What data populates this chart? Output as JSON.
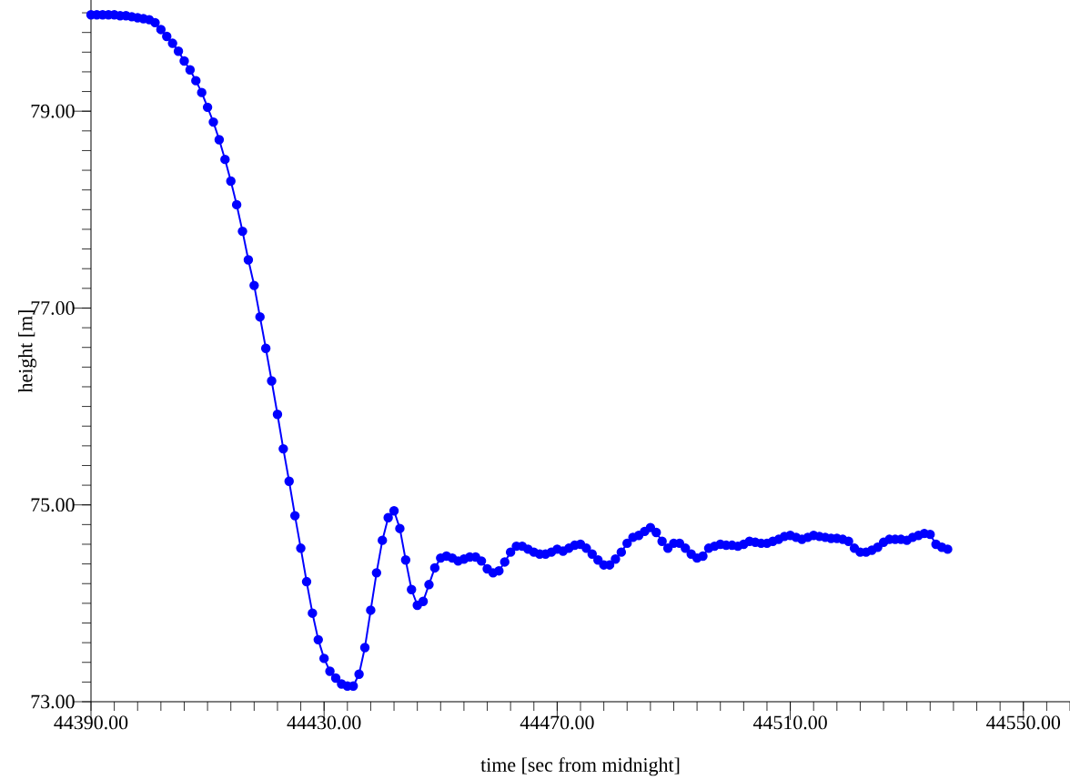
{
  "chart_data": {
    "type": "line",
    "xlabel": "time [sec from midnight]",
    "ylabel": "height [m]",
    "x": [
      44390,
      44391,
      44392,
      44393,
      44394,
      44395,
      44396,
      44397,
      44398,
      44399,
      44400,
      44401,
      44402,
      44403,
      44404,
      44405,
      44406,
      44407,
      44408,
      44409,
      44410,
      44411,
      44412,
      44413,
      44414,
      44415,
      44416,
      44417,
      44418,
      44419,
      44420,
      44421,
      44422,
      44423,
      44424,
      44425,
      44426,
      44427,
      44428,
      44429,
      44430,
      44431,
      44432,
      44433,
      44434,
      44435,
      44436,
      44437,
      44438,
      44439,
      44440,
      44441,
      44442,
      44443,
      44444,
      44445,
      44446,
      44447,
      44448,
      44449,
      44450,
      44451,
      44452,
      44453,
      44454,
      44455,
      44456,
      44457,
      44458,
      44459,
      44460,
      44461,
      44462,
      44463,
      44464,
      44465,
      44466,
      44467,
      44468,
      44469,
      44470,
      44471,
      44472,
      44473,
      44474,
      44475,
      44476,
      44477,
      44478,
      44479,
      44480,
      44481,
      44482,
      44483,
      44484,
      44485,
      44486,
      44487,
      44488,
      44489,
      44490,
      44491,
      44492,
      44493,
      44494,
      44495,
      44496,
      44497,
      44498,
      44499,
      44500,
      44501,
      44502,
      44503,
      44504,
      44505,
      44506,
      44507,
      44508,
      44509,
      44510,
      44511,
      44512,
      44513,
      44514,
      44515,
      44516,
      44517,
      44518,
      44519,
      44520,
      44521,
      44522,
      44523,
      44524,
      44525,
      44526,
      44527,
      44528,
      44529,
      44530,
      44531,
      44532,
      44533,
      44534,
      44535,
      44536,
      44537
    ],
    "values": [
      79.98,
      79.98,
      79.98,
      79.98,
      79.98,
      79.97,
      79.97,
      79.96,
      79.95,
      79.94,
      79.93,
      79.9,
      79.83,
      79.76,
      79.69,
      79.61,
      79.51,
      79.42,
      79.31,
      79.19,
      79.04,
      78.89,
      78.71,
      78.51,
      78.29,
      78.05,
      77.78,
      77.49,
      77.23,
      76.91,
      76.59,
      76.26,
      75.92,
      75.57,
      75.24,
      74.89,
      74.56,
      74.22,
      73.9,
      73.63,
      73.44,
      73.31,
      73.24,
      73.18,
      73.16,
      73.16,
      73.28,
      73.55,
      73.93,
      74.31,
      74.64,
      74.87,
      74.94,
      74.76,
      74.44,
      74.14,
      73.98,
      74.02,
      74.19,
      74.36,
      74.46,
      74.48,
      74.46,
      74.43,
      74.45,
      74.47,
      74.47,
      74.43,
      74.35,
      74.31,
      74.33,
      74.42,
      74.52,
      74.58,
      74.58,
      74.55,
      74.52,
      74.5,
      74.5,
      74.52,
      74.55,
      74.53,
      74.56,
      74.59,
      74.6,
      74.56,
      74.5,
      74.44,
      74.39,
      74.39,
      74.45,
      74.52,
      74.61,
      74.67,
      74.69,
      74.73,
      74.77,
      74.72,
      74.63,
      74.56,
      74.61,
      74.61,
      74.56,
      74.5,
      74.46,
      74.48,
      74.56,
      74.58,
      74.6,
      74.59,
      74.59,
      74.58,
      74.6,
      74.63,
      74.62,
      74.61,
      74.61,
      74.63,
      74.65,
      74.68,
      74.69,
      74.67,
      74.65,
      74.67,
      74.69,
      74.68,
      74.67,
      74.66,
      74.66,
      74.65,
      74.63,
      74.56,
      74.52,
      74.52,
      74.54,
      74.57,
      74.62,
      74.65,
      74.65,
      74.65,
      74.64,
      74.67,
      74.69,
      74.71,
      74.7,
      74.6,
      74.57,
      74.55
    ],
    "color": "#0000ff",
    "marker": "circle",
    "line_style": "solid",
    "xlim": [
      44390,
      44558
    ],
    "ylim": [
      73,
      80.13
    ],
    "xticks": [
      {
        "value": 44390,
        "label": "44390.00"
      },
      {
        "value": 44394,
        "label": null
      },
      {
        "value": 44398,
        "label": null
      },
      {
        "value": 44402,
        "label": null
      },
      {
        "value": 44406,
        "label": null
      },
      {
        "value": 44410,
        "label": null
      },
      {
        "value": 44414,
        "label": null
      },
      {
        "value": 44418,
        "label": null
      },
      {
        "value": 44422,
        "label": null
      },
      {
        "value": 44426,
        "label": null
      },
      {
        "value": 44430,
        "label": "44430.00"
      },
      {
        "value": 44434,
        "label": null
      },
      {
        "value": 44438,
        "label": null
      },
      {
        "value": 44442,
        "label": null
      },
      {
        "value": 44446,
        "label": null
      },
      {
        "value": 44450,
        "label": null
      },
      {
        "value": 44454,
        "label": null
      },
      {
        "value": 44458,
        "label": null
      },
      {
        "value": 44462,
        "label": null
      },
      {
        "value": 44466,
        "label": null
      },
      {
        "value": 44470,
        "label": "44470.00"
      },
      {
        "value": 44474,
        "label": null
      },
      {
        "value": 44478,
        "label": null
      },
      {
        "value": 44482,
        "label": null
      },
      {
        "value": 44486,
        "label": null
      },
      {
        "value": 44490,
        "label": null
      },
      {
        "value": 44494,
        "label": null
      },
      {
        "value": 44498,
        "label": null
      },
      {
        "value": 44502,
        "label": null
      },
      {
        "value": 44506,
        "label": null
      },
      {
        "value": 44510,
        "label": "44510.00"
      },
      {
        "value": 44514,
        "label": null
      },
      {
        "value": 44518,
        "label": null
      },
      {
        "value": 44522,
        "label": null
      },
      {
        "value": 44526,
        "label": null
      },
      {
        "value": 44530,
        "label": null
      },
      {
        "value": 44534,
        "label": null
      },
      {
        "value": 44538,
        "label": null
      },
      {
        "value": 44542,
        "label": null
      },
      {
        "value": 44546,
        "label": null
      },
      {
        "value": 44550,
        "label": "44550.00"
      },
      {
        "value": 44554,
        "label": null
      },
      {
        "value": 44558,
        "label": null
      }
    ],
    "yticks": [
      {
        "value": 73,
        "label": "73.00"
      },
      {
        "value": 73.2,
        "label": null
      },
      {
        "value": 73.4,
        "label": null
      },
      {
        "value": 73.6,
        "label": null
      },
      {
        "value": 73.8,
        "label": null
      },
      {
        "value": 74,
        "label": null
      },
      {
        "value": 74.2,
        "label": null
      },
      {
        "value": 74.4,
        "label": null
      },
      {
        "value": 74.6,
        "label": null
      },
      {
        "value": 74.8,
        "label": null
      },
      {
        "value": 75,
        "label": "75.00"
      },
      {
        "value": 75.2,
        "label": null
      },
      {
        "value": 75.4,
        "label": null
      },
      {
        "value": 75.6,
        "label": null
      },
      {
        "value": 75.8,
        "label": null
      },
      {
        "value": 76,
        "label": null
      },
      {
        "value": 76.2,
        "label": null
      },
      {
        "value": 76.4,
        "label": null
      },
      {
        "value": 76.6,
        "label": null
      },
      {
        "value": 76.8,
        "label": null
      },
      {
        "value": 77,
        "label": "77.00"
      },
      {
        "value": 77.2,
        "label": null
      },
      {
        "value": 77.4,
        "label": null
      },
      {
        "value": 77.6,
        "label": null
      },
      {
        "value": 77.8,
        "label": null
      },
      {
        "value": 78,
        "label": null
      },
      {
        "value": 78.2,
        "label": null
      },
      {
        "value": 78.4,
        "label": null
      },
      {
        "value": 78.6,
        "label": null
      },
      {
        "value": 78.8,
        "label": null
      },
      {
        "value": 79,
        "label": "79.00"
      },
      {
        "value": 79.2,
        "label": null
      },
      {
        "value": 79.4,
        "label": null
      },
      {
        "value": 79.6,
        "label": null
      },
      {
        "value": 79.8,
        "label": null
      },
      {
        "value": 80,
        "label": null
      }
    ]
  }
}
